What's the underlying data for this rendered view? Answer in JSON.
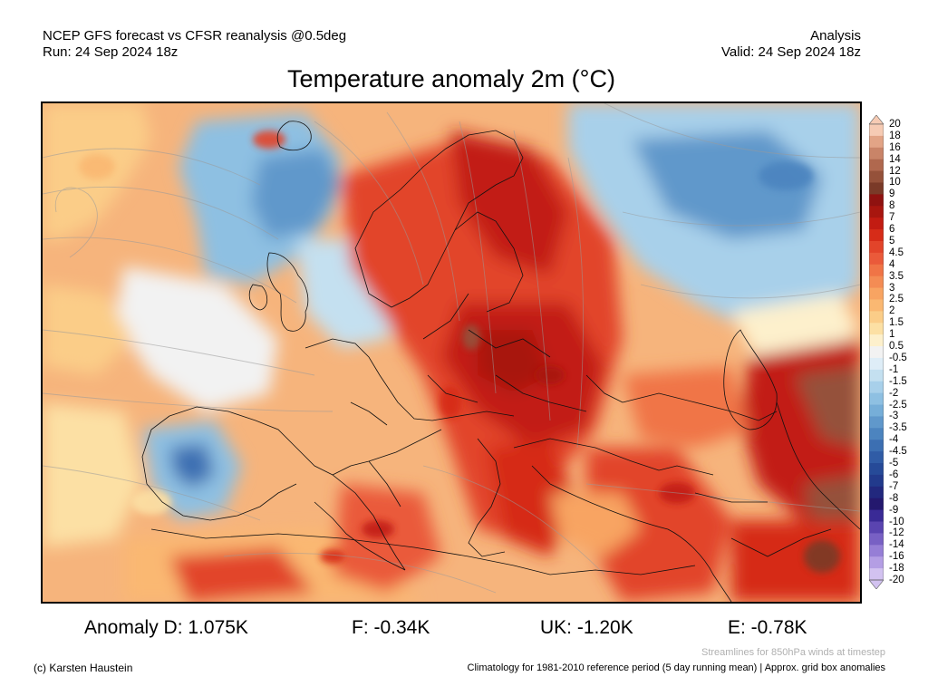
{
  "header": {
    "left_line1": "NCEP GFS forecast vs CFSR reanalysis @0.5deg",
    "left_line2": "Run: 24 Sep 2024 18z",
    "right_line1": "Analysis",
    "right_line2": "Valid: 24 Sep 2024 18z"
  },
  "title": "Temperature anomaly 2m (°C)",
  "colorbar": {
    "labels": [
      "20",
      "18",
      "16",
      "14",
      "12",
      "10",
      "9",
      "8",
      "7",
      "6",
      "5",
      "4.5",
      "4",
      "3.5",
      "3",
      "2.5",
      "2",
      "1.5",
      "1",
      "0.5",
      "-0.5",
      "-1",
      "-1.5",
      "-2",
      "-2.5",
      "-3",
      "-3.5",
      "-4",
      "-4.5",
      "-5",
      "-6",
      "-7",
      "-8",
      "-9",
      "-10",
      "-12",
      "-14",
      "-16",
      "-18",
      "-20"
    ],
    "colors": [
      "#f6cbb4",
      "#e2a486",
      "#c98468",
      "#b0684e",
      "#95513a",
      "#7a3a28",
      "#8f1210",
      "#a8160f",
      "#c21c12",
      "#d62c18",
      "#e2442a",
      "#ea5a3a",
      "#f07446",
      "#f48c54",
      "#f8a462",
      "#fab872",
      "#fbcd88",
      "#fce0a4",
      "#fdf0cc",
      "#f2f2f2",
      "#deedf7",
      "#c4e0f0",
      "#a8d0ea",
      "#8ec0e2",
      "#76aed8",
      "#6098cb",
      "#4c84bf",
      "#3c6fb2",
      "#305ca6",
      "#264a98",
      "#223a8c",
      "#22287e",
      "#24186e",
      "#3a2a96",
      "#5a44b0",
      "#7860c4",
      "#967ed6",
      "#b49ee4",
      "#d2c2f0"
    ]
  },
  "stats": {
    "d": "Anomaly D: 1.075K",
    "f": "F: -0.34K",
    "uk": "UK: -1.20K",
    "e": "E: -0.78K"
  },
  "footer": {
    "streamline_note": "Streamlines for 850hPa winds at timestep",
    "copyright": "(c) Karsten Haustein",
    "climatology": "Climatology for 1981-2010 reference period (5 day running mean) | Approx. grid box anomalies"
  }
}
